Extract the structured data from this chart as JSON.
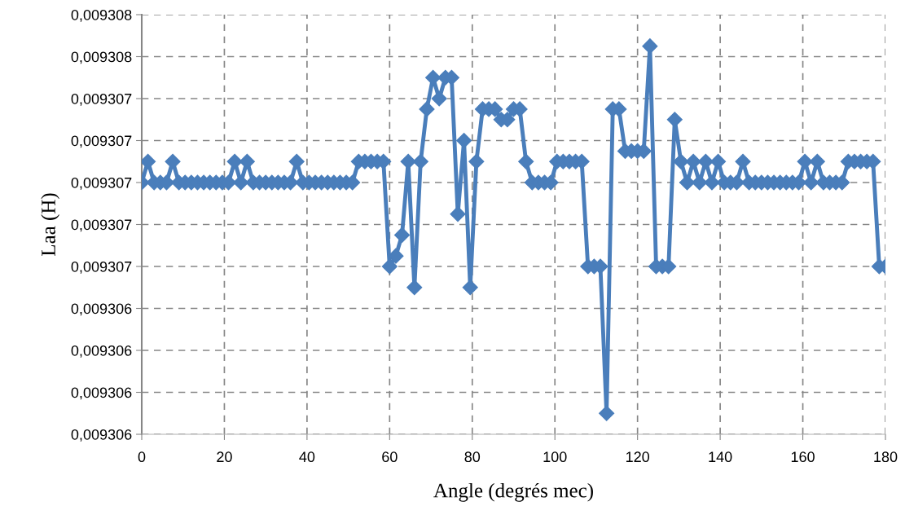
{
  "chart_data": {
    "type": "line",
    "xlabel": "Angle (degrés mec)",
    "ylabel": "Laa (H)",
    "x": [
      0,
      1.5,
      3,
      4.5,
      6,
      7.5,
      9,
      10.5,
      12,
      13.5,
      15,
      16.5,
      18,
      19.5,
      21,
      22.5,
      24,
      25.5,
      27,
      28.5,
      30,
      31.5,
      33,
      34.5,
      36,
      37.5,
      39,
      40.5,
      42,
      43.5,
      45,
      46.5,
      48,
      49.5,
      51,
      52.5,
      54,
      55.5,
      57,
      58.5,
      60,
      61.5,
      63,
      64.5,
      66,
      67.5,
      69,
      70.5,
      72,
      73.5,
      75,
      76.5,
      78,
      79.5,
      81,
      82.5,
      84,
      85.5,
      87,
      88.5,
      90,
      91.5,
      93,
      94.5,
      96,
      97.5,
      99,
      100.5,
      102,
      103.5,
      105,
      106.5,
      108,
      109.5,
      111,
      112.5,
      114,
      115.5,
      117,
      118.5,
      120,
      121.5,
      123,
      124.5,
      126,
      127.5,
      129,
      130.5,
      132,
      133.5,
      135,
      136.5,
      138,
      139.5,
      141,
      142.5,
      144,
      145.5,
      147,
      148.5,
      150,
      151.5,
      153,
      154.5,
      156,
      157.5,
      159,
      160.5,
      162,
      163.5,
      165,
      166.5,
      168,
      169.5,
      171,
      172.5,
      174,
      175.5,
      177,
      178.5,
      180
    ],
    "series": [
      {
        "color": "#4a7ebb",
        "values": [
          0.009307,
          0.0093071,
          0.009307,
          0.009307,
          0.009307,
          0.0093071,
          0.009307,
          0.009307,
          0.009307,
          0.009307,
          0.009307,
          0.009307,
          0.009307,
          0.009307,
          0.009307,
          0.0093071,
          0.009307,
          0.0093071,
          0.009307,
          0.009307,
          0.009307,
          0.009307,
          0.009307,
          0.009307,
          0.009307,
          0.0093071,
          0.009307,
          0.009307,
          0.009307,
          0.009307,
          0.009307,
          0.009307,
          0.009307,
          0.009307,
          0.009307,
          0.0093071,
          0.0093071,
          0.0093071,
          0.0093071,
          0.0093071,
          0.0093066,
          0.00930665,
          0.00930675,
          0.0093071,
          0.0093065,
          0.0093071,
          0.00930735,
          0.0093075,
          0.0093074,
          0.0093075,
          0.0093075,
          0.00930685,
          0.0093072,
          0.0093065,
          0.0093071,
          0.00930735,
          0.00930735,
          0.00930735,
          0.0093073,
          0.0093073,
          0.00930735,
          0.00930735,
          0.0093071,
          0.009307,
          0.009307,
          0.009307,
          0.009307,
          0.0093071,
          0.0093071,
          0.0093071,
          0.0093071,
          0.0093071,
          0.0093066,
          0.0093066,
          0.0093066,
          0.0093059,
          0.00930735,
          0.00930735,
          0.00930715,
          0.00930715,
          0.00930715,
          0.00930715,
          0.00930765,
          0.0093066,
          0.0093066,
          0.0093066,
          0.0093073,
          0.0093071,
          0.009307,
          0.0093071,
          0.009307,
          0.0093071,
          0.009307,
          0.0093071,
          0.009307,
          0.009307,
          0.009307,
          0.0093071,
          0.009307,
          0.009307,
          0.009307,
          0.009307,
          0.009307,
          0.009307,
          0.009307,
          0.009307,
          0.009307,
          0.0093071,
          0.009307,
          0.0093071,
          0.009307,
          0.009307,
          0.009307,
          0.009307,
          0.0093071,
          0.0093071,
          0.0093071,
          0.0093071,
          0.0093071,
          0.0093066,
          0.0093066
        ]
      }
    ],
    "xlim": [
      0,
      180
    ],
    "xticks": [
      0,
      20,
      40,
      60,
      80,
      100,
      120,
      140,
      160,
      180
    ],
    "ylim": [
      0.0093058,
      0.0093078
    ],
    "yticks": [
      {
        "value": 0.0093058,
        "label": "0,009306"
      },
      {
        "value": 0.009306,
        "label": "0,009306"
      },
      {
        "value": 0.0093062,
        "label": "0,009306"
      },
      {
        "value": 0.0093064,
        "label": "0,009306"
      },
      {
        "value": 0.0093066,
        "label": "0,009307"
      },
      {
        "value": 0.0093068,
        "label": "0,009307"
      },
      {
        "value": 0.009307,
        "label": "0,009307"
      },
      {
        "value": 0.0093072,
        "label": "0,009307"
      },
      {
        "value": 0.0093074,
        "label": "0,009307"
      },
      {
        "value": 0.0093076,
        "label": "0,009308"
      },
      {
        "value": 0.0093078,
        "label": "0,009308"
      }
    ],
    "grid": true,
    "legend": false,
    "marker": "diamond",
    "line_style": "solid"
  }
}
